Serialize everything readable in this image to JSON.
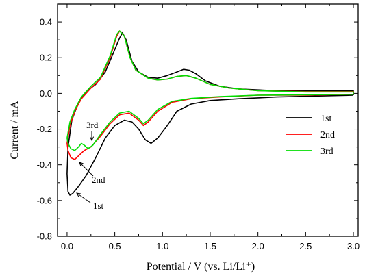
{
  "chart_data": {
    "type": "line",
    "title": "",
    "xlabel": "Potential / V (vs. Li/Li⁺)",
    "ylabel": "Current / mA",
    "xlim": [
      -0.1,
      3.05
    ],
    "ylim": [
      -0.8,
      0.5
    ],
    "xticks": [
      "0.0",
      "0.5",
      "1.0",
      "1.5",
      "2.0",
      "2.5",
      "3.0"
    ],
    "yticks": [
      "0.4",
      "0.2",
      "0.0",
      "-0.2",
      "-0.4",
      "-0.6",
      "-0.8"
    ],
    "grid": false,
    "legend": "right",
    "series": [
      {
        "name": "1st",
        "color": "#000000",
        "points": [
          [
            3.0,
            -0.01
          ],
          [
            2.6,
            -0.015
          ],
          [
            2.2,
            -0.02
          ],
          [
            1.8,
            -0.03
          ],
          [
            1.5,
            -0.04
          ],
          [
            1.3,
            -0.06
          ],
          [
            1.15,
            -0.1
          ],
          [
            1.05,
            -0.18
          ],
          [
            0.95,
            -0.25
          ],
          [
            0.88,
            -0.28
          ],
          [
            0.82,
            -0.26
          ],
          [
            0.75,
            -0.2
          ],
          [
            0.68,
            -0.16
          ],
          [
            0.6,
            -0.15
          ],
          [
            0.5,
            -0.18
          ],
          [
            0.4,
            -0.25
          ],
          [
            0.3,
            -0.36
          ],
          [
            0.2,
            -0.46
          ],
          [
            0.12,
            -0.52
          ],
          [
            0.06,
            -0.56
          ],
          [
            0.03,
            -0.57
          ],
          [
            0.01,
            -0.55
          ],
          [
            0.0,
            -0.45
          ],
          [
            0.01,
            -0.3
          ],
          [
            0.05,
            -0.15
          ],
          [
            0.12,
            -0.05
          ],
          [
            0.2,
            0.01
          ],
          [
            0.3,
            0.05
          ],
          [
            0.4,
            0.12
          ],
          [
            0.48,
            0.22
          ],
          [
            0.55,
            0.31
          ],
          [
            0.58,
            0.34
          ],
          [
            0.62,
            0.3
          ],
          [
            0.68,
            0.18
          ],
          [
            0.75,
            0.12
          ],
          [
            0.85,
            0.09
          ],
          [
            0.95,
            0.085
          ],
          [
            1.05,
            0.1
          ],
          [
            1.15,
            0.12
          ],
          [
            1.22,
            0.135
          ],
          [
            1.28,
            0.13
          ],
          [
            1.35,
            0.11
          ],
          [
            1.45,
            0.07
          ],
          [
            1.6,
            0.04
          ],
          [
            1.8,
            0.025
          ],
          [
            2.2,
            0.015
          ],
          [
            2.6,
            0.015
          ],
          [
            3.0,
            0.015
          ],
          [
            3.0,
            -0.01
          ]
        ]
      },
      {
        "name": "2nd",
        "color": "#ff0000",
        "points": [
          [
            3.0,
            -0.005
          ],
          [
            2.5,
            -0.01
          ],
          [
            2.0,
            -0.01
          ],
          [
            1.6,
            -0.02
          ],
          [
            1.3,
            -0.03
          ],
          [
            1.1,
            -0.05
          ],
          [
            0.95,
            -0.1
          ],
          [
            0.85,
            -0.16
          ],
          [
            0.8,
            -0.18
          ],
          [
            0.75,
            -0.15
          ],
          [
            0.65,
            -0.11
          ],
          [
            0.55,
            -0.12
          ],
          [
            0.45,
            -0.17
          ],
          [
            0.35,
            -0.24
          ],
          [
            0.25,
            -0.3
          ],
          [
            0.18,
            -0.32
          ],
          [
            0.14,
            -0.34
          ],
          [
            0.08,
            -0.37
          ],
          [
            0.04,
            -0.36
          ],
          [
            0.01,
            -0.32
          ],
          [
            0.0,
            -0.28
          ],
          [
            0.03,
            -0.18
          ],
          [
            0.08,
            -0.1
          ],
          [
            0.15,
            -0.03
          ],
          [
            0.25,
            0.03
          ],
          [
            0.35,
            0.08
          ],
          [
            0.45,
            0.2
          ],
          [
            0.52,
            0.32
          ],
          [
            0.55,
            0.35
          ],
          [
            0.6,
            0.32
          ],
          [
            0.66,
            0.2
          ],
          [
            0.72,
            0.13
          ],
          [
            0.85,
            0.085
          ],
          [
            0.95,
            0.075
          ],
          [
            1.05,
            0.08
          ],
          [
            1.15,
            0.095
          ],
          [
            1.25,
            0.1
          ],
          [
            1.35,
            0.085
          ],
          [
            1.5,
            0.05
          ],
          [
            1.7,
            0.03
          ],
          [
            2.0,
            0.015
          ],
          [
            2.5,
            0.01
          ],
          [
            3.0,
            0.01
          ],
          [
            3.0,
            -0.005
          ]
        ]
      },
      {
        "name": "3rd",
        "color": "#00dd00",
        "points": [
          [
            3.0,
            -0.005
          ],
          [
            2.5,
            -0.008
          ],
          [
            2.0,
            -0.01
          ],
          [
            1.6,
            -0.018
          ],
          [
            1.3,
            -0.028
          ],
          [
            1.1,
            -0.045
          ],
          [
            0.95,
            -0.09
          ],
          [
            0.85,
            -0.15
          ],
          [
            0.8,
            -0.17
          ],
          [
            0.75,
            -0.14
          ],
          [
            0.65,
            -0.1
          ],
          [
            0.55,
            -0.11
          ],
          [
            0.45,
            -0.16
          ],
          [
            0.35,
            -0.23
          ],
          [
            0.27,
            -0.29
          ],
          [
            0.22,
            -0.31
          ],
          [
            0.18,
            -0.29
          ],
          [
            0.15,
            -0.28
          ],
          [
            0.12,
            -0.3
          ],
          [
            0.08,
            -0.32
          ],
          [
            0.04,
            -0.31
          ],
          [
            0.01,
            -0.28
          ],
          [
            0.0,
            -0.25
          ],
          [
            0.03,
            -0.16
          ],
          [
            0.08,
            -0.09
          ],
          [
            0.15,
            -0.02
          ],
          [
            0.25,
            0.04
          ],
          [
            0.35,
            0.09
          ],
          [
            0.45,
            0.21
          ],
          [
            0.52,
            0.33
          ],
          [
            0.55,
            0.35
          ],
          [
            0.6,
            0.32
          ],
          [
            0.66,
            0.2
          ],
          [
            0.72,
            0.13
          ],
          [
            0.85,
            0.085
          ],
          [
            0.95,
            0.075
          ],
          [
            1.05,
            0.08
          ],
          [
            1.15,
            0.095
          ],
          [
            1.25,
            0.1
          ],
          [
            1.35,
            0.085
          ],
          [
            1.5,
            0.05
          ],
          [
            1.7,
            0.03
          ],
          [
            2.0,
            0.015
          ],
          [
            2.5,
            0.008
          ],
          [
            3.0,
            0.008
          ],
          [
            3.0,
            -0.005
          ]
        ]
      }
    ],
    "annotations": [
      {
        "text": "3rd",
        "at": [
          0.17,
          -0.28
        ]
      },
      {
        "text": "2nd",
        "at": [
          0.09,
          -0.365
        ]
      },
      {
        "text": "1st",
        "at": [
          0.03,
          -0.57
        ]
      }
    ]
  }
}
